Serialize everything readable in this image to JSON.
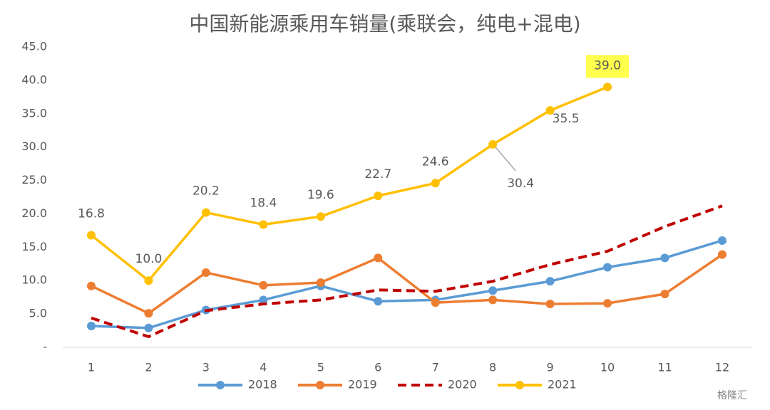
{
  "chart_data": {
    "type": "line",
    "title": "中国新能源乘用车销量(乘联会，纯电+混电)",
    "categories": [
      "1",
      "2",
      "3",
      "4",
      "5",
      "6",
      "7",
      "8",
      "9",
      "10",
      "11",
      "12"
    ],
    "series": [
      {
        "name": "2018",
        "color": "#5b9bd5",
        "dashed": false,
        "values": [
          3.2,
          2.9,
          5.6,
          7.1,
          9.2,
          6.9,
          7.1,
          8.5,
          9.9,
          12.0,
          13.4,
          16.0
        ]
      },
      {
        "name": "2019",
        "color": "#ed7d31",
        "dashed": false,
        "values": [
          9.2,
          5.1,
          11.2,
          9.3,
          9.7,
          13.4,
          6.7,
          7.1,
          6.5,
          6.6,
          8.0,
          13.9
        ]
      },
      {
        "name": "2020",
        "color": "#c00000",
        "dashed": true,
        "values": [
          4.4,
          1.6,
          5.5,
          6.5,
          7.1,
          8.6,
          8.4,
          9.9,
          12.4,
          14.4,
          18.1,
          21.2
        ]
      },
      {
        "name": "2021",
        "color": "#ffc000",
        "dashed": false,
        "values": [
          16.8,
          10.0,
          20.2,
          18.4,
          19.6,
          22.7,
          24.6,
          30.4,
          35.5,
          39.0,
          null,
          null
        ],
        "value_labels": [
          "16.8",
          "10.0",
          "20.2",
          "18.4",
          "19.6",
          "22.7",
          "24.6",
          "30.4",
          "35.5",
          "39.0",
          null,
          null
        ]
      }
    ],
    "ylim": [
      0,
      45
    ],
    "yticks": [
      {
        "value": 0,
        "label": "-"
      },
      {
        "value": 5,
        "label": "5.0"
      },
      {
        "value": 10,
        "label": "10.0"
      },
      {
        "value": 15,
        "label": "15.0"
      },
      {
        "value": 20,
        "label": "20.0"
      },
      {
        "value": 25,
        "label": "25.0"
      },
      {
        "value": 30,
        "label": "30.0"
      },
      {
        "value": 35,
        "label": "35.0"
      },
      {
        "value": 40,
        "label": "40.0"
      },
      {
        "value": 45,
        "label": "45.0"
      }
    ],
    "grid": false,
    "legend": "bottom",
    "watermark": "格隆汇"
  }
}
